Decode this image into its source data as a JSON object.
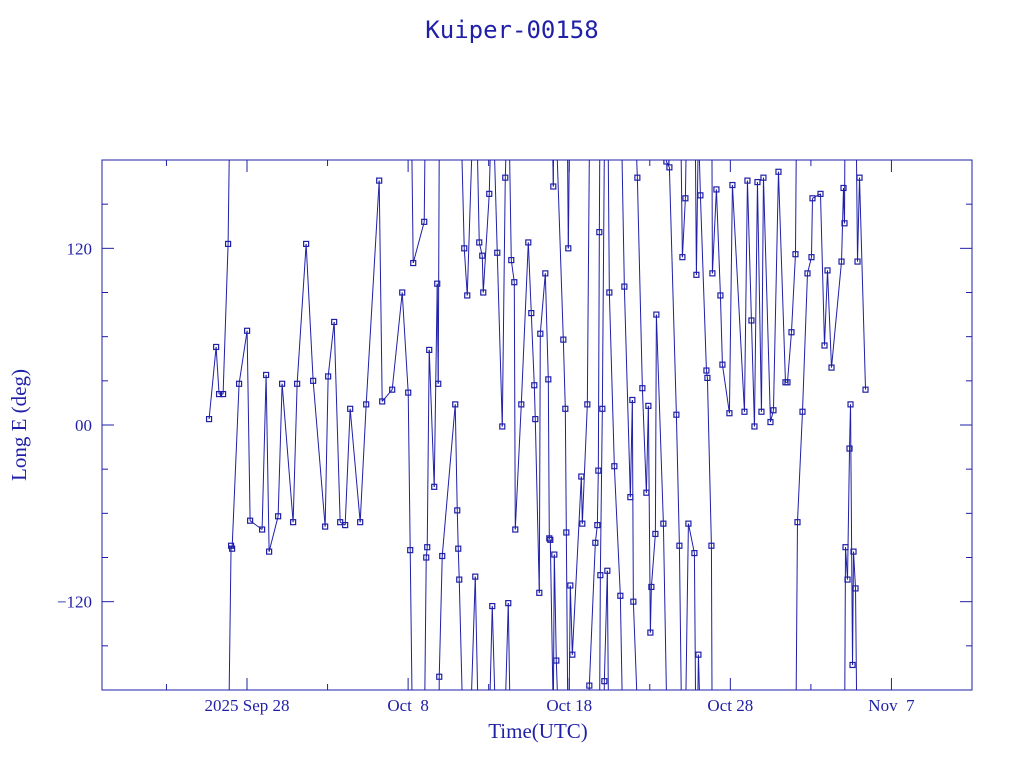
{
  "chart_data": {
    "type": "line",
    "title": "Kuiper-00158",
    "xlabel": "Time(UTC)",
    "ylabel": "Long E (deg)",
    "xlim": [
      "2025-09-19",
      "2025-11-12"
    ],
    "ylim": [
      -180,
      180
    ],
    "grid": false,
    "color": "#1f1fa8",
    "marker": "square",
    "x_ticks": [
      {
        "date": "2025-09-28",
        "label": "2025 Sep 28"
      },
      {
        "date": "2025-10-08",
        "label": "Oct  8"
      },
      {
        "date": "2025-10-18",
        "label": "Oct 18"
      },
      {
        "date": "2025-10-28",
        "label": "Oct 28"
      },
      {
        "date": "2025-11-07",
        "label": "Nov  7"
      }
    ],
    "y_ticks": [
      {
        "value": 120,
        "label": "120"
      },
      {
        "value": 0,
        "label": "00"
      },
      {
        "value": -120,
        "label": "−120"
      }
    ],
    "series": [
      {
        "x": [
          "2025-09-25T15:30",
          "2025-09-26T02:00",
          "2025-09-26T06:24",
          "2025-09-26T12:23",
          "2025-09-26T19:50",
          "2025-09-27T00:17",
          "2025-09-27T01:48",
          "2025-09-27T12:13",
          "2025-09-28T00:09",
          "2025-09-28T04:38",
          "2025-09-28T22:30",
          "2025-09-29T04:28",
          "2025-09-29T08:57",
          "2025-09-29T22:22",
          "2025-09-30T04:19",
          "2025-09-30T20:43",
          "2025-10-01T02:41",
          "2025-10-01T16:06",
          "2025-10-02T02:32",
          "2025-10-02T20:25",
          "2025-10-03T00:53",
          "2025-10-03T09:50",
          "2025-10-03T18:47",
          "2025-10-04T02:14",
          "2025-10-04T09:41",
          "2025-10-05T00:36",
          "2025-10-05T09:33",
          "2025-10-06T04:55",
          "2025-10-06T09:23",
          "2025-10-07T00:17",
          "2025-10-07T15:13",
          "2025-10-08T00:09",
          "2025-10-08T03:07",
          "2025-10-08T07:36",
          "2025-10-09T00:00",
          "2025-10-09T02:59",
          "2025-10-09T04:28",
          "2025-10-09T07:27",
          "2025-10-09T14:54",
          "2025-10-09T19:22",
          "2025-10-09T20:52",
          "2025-10-09T22:22",
          "2025-10-10T02:50",
          "2025-10-10T22:12",
          "2025-10-11T01:12",
          "2025-10-11T02:41",
          "2025-10-11T04:10",
          "2025-10-11T11:37",
          "2025-10-11T16:06",
          "2025-10-12T04:02",
          "2025-10-12T09:59",
          "2025-10-12T14:28",
          "2025-10-12T15:57",
          "2025-10-13T00:53",
          "2025-10-13T05:22",
          "2025-10-13T12:49",
          "2025-10-13T20:17",
          "2025-10-14T00:45",
          "2025-10-14T05:13",
          "2025-10-14T09:41",
          "2025-10-14T14:10",
          "2025-10-14T15:39",
          "2025-10-15T00:36",
          "2025-10-15T11:03",
          "2025-10-15T15:30",
          "2025-10-15T19:58",
          "2025-10-15T21:27",
          "2025-10-16T03:26",
          "2025-10-16T04:55",
          "2025-10-16T12:23",
          "2025-10-16T16:51",
          "2025-10-16T18:20",
          "2025-10-16T19:50",
          "2025-10-17T00:17",
          "2025-10-17T01:48",
          "2025-10-17T04:46",
          "2025-10-17T15:13",
          "2025-10-17T18:11",
          "2025-10-17T19:41",
          "2025-10-17T22:39",
          "2025-10-18T01:38",
          "2025-10-18T04:38",
          "2025-10-18T18:02",
          "2025-10-18T19:32",
          "2025-10-19T02:59",
          "2025-10-19T05:57",
          "2025-10-19T14:54",
          "2025-10-19T17:53",
          "2025-10-19T19:22",
          "2025-10-19T20:52",
          "2025-10-19T22:22",
          "2025-10-20T01:21",
          "2025-10-20T04:19",
          "2025-10-20T08:47",
          "2025-10-20T11:47",
          "2025-10-20T19:14",
          "2025-10-21T04:10",
          "2025-10-21T10:08",
          "2025-10-21T19:05",
          "2025-10-21T22:03",
          "2025-10-21T23:32",
          "2025-10-22T05:31",
          "2025-10-22T12:58",
          "2025-10-22T18:56",
          "2025-10-22T21:55",
          "2025-10-23T00:53",
          "2025-10-23T02:23",
          "2025-10-23T08:21",
          "2025-10-23T09:50",
          "2025-10-23T20:17",
          "2025-10-24T00:45",
          "2025-10-24T05:13",
          "2025-10-24T15:39",
          "2025-10-24T20:08",
          "2025-10-25T00:36",
          "2025-10-25T05:04",
          "2025-10-25T09:33",
          "2025-10-25T18:29",
          "2025-10-25T21:27",
          "2025-10-26T00:27",
          "2025-10-26T03:26",
          "2025-10-26T12:23",
          "2025-10-26T13:52",
          "2025-10-26T19:50",
          "2025-10-26T21:19",
          "2025-10-27T03:17",
          "2025-10-27T09:14",
          "2025-10-27T12:13",
          "2025-10-27T22:39",
          "2025-10-28T03:07",
          "2025-10-28T21:02",
          "2025-10-29T01:29",
          "2025-10-29T07:27",
          "2025-10-29T11:56",
          "2025-10-29T16:24",
          "2025-10-29T22:22",
          "2025-10-30T01:21",
          "2025-10-30T11:47",
          "2025-10-30T16:15",
          "2025-10-30T23:42",
          "2025-10-31T10:08",
          "2025-10-31T13:07",
          "2025-10-31T19:05",
          "2025-11-01T01:02",
          "2025-11-01T04:02",
          "2025-11-01T11:29",
          "2025-11-01T18:56",
          "2025-11-02T00:53",
          "2025-11-02T02:23",
          "2025-11-02T14:18",
          "2025-11-02T20:17",
          "2025-11-03T00:45",
          "2025-11-03T06:43",
          "2025-11-03T21:38",
          "2025-11-04T00:36",
          "2025-11-04T02:05",
          "2025-11-04T03:34",
          "2025-11-04T06:33",
          "2025-11-04T09:33",
          "2025-11-04T11:03",
          "2025-11-04T14:01",
          "2025-11-04T15:30",
          "2025-11-04T18:29",
          "2025-11-04T21:27",
          "2025-11-05T00:27",
          "2025-11-05T09:23"
        ],
        "y": [
          4,
          53,
          21,
          21,
          123,
          -82,
          -84,
          28,
          64,
          -65,
          -71,
          34,
          -86,
          -62,
          28,
          -66,
          28,
          123,
          30,
          -69,
          33,
          70,
          -66,
          -68,
          11,
          -66,
          14,
          166,
          16,
          24,
          90,
          22,
          -85,
          110,
          138,
          -90,
          -83,
          51,
          -42,
          96,
          28,
          -171,
          -89,
          14,
          -58,
          -84,
          -105,
          120,
          88,
          -103,
          124,
          115,
          90,
          157,
          -123,
          117,
          -1,
          168,
          -121,
          112,
          97,
          -71,
          14,
          124,
          76,
          27,
          4,
          -114,
          62,
          103,
          31,
          -77,
          -78,
          162,
          -88,
          -160,
          58,
          11,
          -73,
          120,
          -109,
          -156,
          -35,
          -67,
          14,
          -177,
          -80,
          -68,
          -31,
          131,
          -102,
          11,
          -174,
          -99,
          90,
          -28,
          -116,
          94,
          -49,
          17,
          -120,
          168,
          25,
          -46,
          13,
          -141,
          -110,
          -74,
          75,
          -67,
          179,
          175,
          7,
          -82,
          114,
          154,
          -67,
          -87,
          102,
          -156,
          156,
          37,
          32,
          -82,
          103,
          160,
          88,
          41,
          8,
          163,
          9,
          166,
          71,
          -1,
          165,
          9,
          168,
          2,
          10,
          172,
          29,
          29,
          63,
          116,
          -66,
          9,
          103,
          114,
          154,
          157,
          54,
          105,
          39,
          111,
          161,
          137,
          -83,
          -105,
          -16,
          14,
          -163,
          -86,
          -111,
          111,
          168,
          24
        ]
      }
    ]
  }
}
